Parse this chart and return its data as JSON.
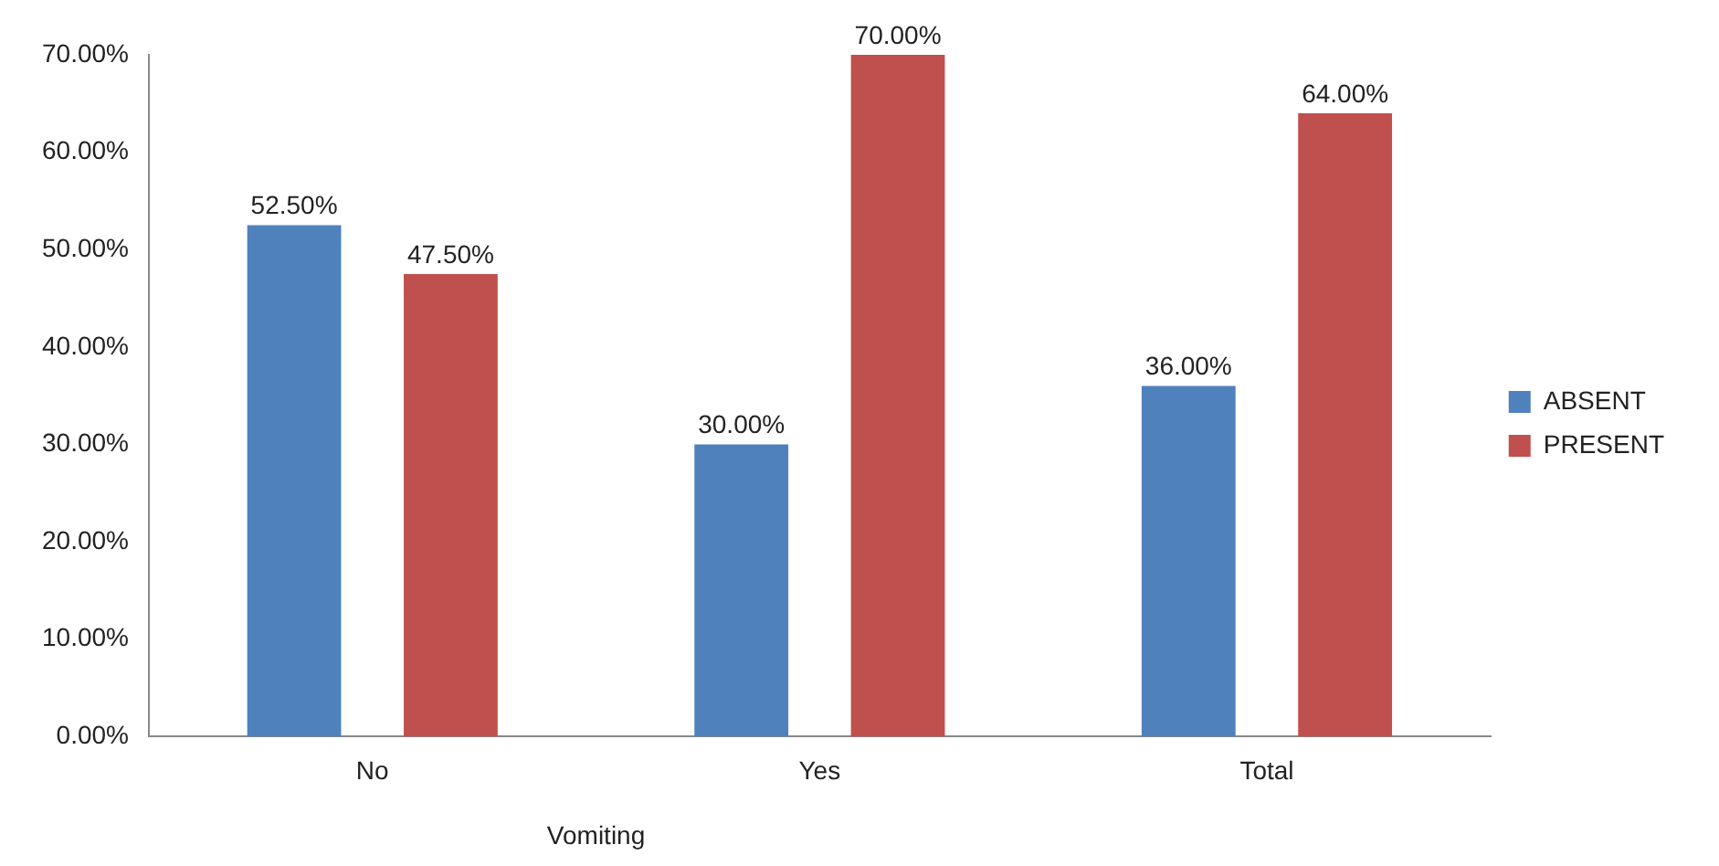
{
  "chart_data": {
    "type": "bar",
    "categories": [
      "No",
      "Yes",
      "Total"
    ],
    "series": [
      {
        "name": "ABSENT",
        "color": "#4f81bd",
        "values": [
          52.5,
          30,
          36
        ],
        "value_labels": [
          "52.50%",
          "30.00%",
          "36.00%"
        ]
      },
      {
        "name": "PRESENT",
        "color": "#c0504d",
        "values": [
          47.5,
          70,
          64
        ],
        "value_labels": [
          "47.50%",
          "70.00%",
          "64.00%"
        ]
      }
    ],
    "ylim": [
      0,
      70
    ],
    "yticks": [
      {
        "value": 0,
        "label": "0.00%"
      },
      {
        "value": 10,
        "label": "10.00%"
      },
      {
        "value": 20,
        "label": "20.00%"
      },
      {
        "value": 30,
        "label": "30.00%"
      },
      {
        "value": 40,
        "label": "40.00%"
      },
      {
        "value": 50,
        "label": "50.00%"
      },
      {
        "value": 60,
        "label": "60.00%"
      },
      {
        "value": 70,
        "label": "70.00%"
      }
    ],
    "annotations": [
      "Vomiting"
    ],
    "grid": false,
    "legend": "right"
  }
}
